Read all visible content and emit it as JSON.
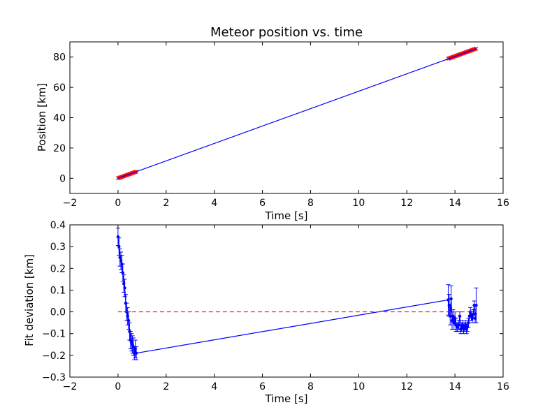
{
  "chart_data": [
    {
      "type": "line",
      "title": "Meteor position vs. time",
      "xlabel": "Time [s]",
      "ylabel": "Position [km]",
      "xlim": [
        -2,
        16
      ],
      "ylim": [
        -10,
        90
      ],
      "xticks": [
        -2,
        0,
        2,
        4,
        6,
        8,
        10,
        12,
        14,
        16
      ],
      "yticks": [
        0,
        20,
        40,
        60,
        80
      ],
      "grid": false,
      "series": [
        {
          "kind": "scatter",
          "color": "#ff0000",
          "marker": "x",
          "x": [
            0.0,
            0.04,
            0.08,
            0.12,
            0.16,
            0.2,
            0.24,
            0.28,
            0.32,
            0.36,
            0.4,
            0.44,
            0.48,
            0.52,
            0.56,
            0.6,
            0.64,
            0.68,
            0.72,
            0.76,
            13.72,
            13.76,
            13.8,
            13.84,
            13.88,
            13.92,
            13.96,
            14.0,
            14.04,
            14.08,
            14.12,
            14.16,
            14.2,
            14.24,
            14.28,
            14.32,
            14.36,
            14.4,
            14.44,
            14.48,
            14.52,
            14.56,
            14.6,
            14.64,
            14.68,
            14.72,
            14.76,
            14.8,
            14.84,
            14.88
          ],
          "y": [
            0.0,
            0.23,
            0.46,
            0.69,
            0.92,
            1.15,
            1.38,
            1.61,
            1.84,
            2.07,
            2.3,
            2.53,
            2.76,
            2.99,
            3.22,
            3.45,
            3.68,
            3.91,
            4.14,
            4.37,
            78.9,
            79.13,
            79.36,
            79.59,
            79.82,
            80.05,
            80.28,
            80.51,
            80.74,
            80.97,
            81.2,
            81.43,
            81.66,
            81.89,
            82.12,
            82.35,
            82.58,
            82.81,
            83.04,
            83.27,
            83.5,
            83.73,
            83.96,
            84.19,
            84.42,
            84.65,
            84.88,
            85.11,
            85.34,
            85.57
          ]
        },
        {
          "kind": "line",
          "color": "#0000ff",
          "x": [
            0.0,
            14.9
          ],
          "y": [
            0.0,
            85.6
          ]
        }
      ]
    },
    {
      "type": "line",
      "title": "",
      "xlabel": "Time [s]",
      "ylabel": "Fit deviation [km]",
      "xlim": [
        -2,
        16
      ],
      "ylim": [
        -0.3,
        0.4
      ],
      "xticks": [
        -2,
        0,
        2,
        4,
        6,
        8,
        10,
        12,
        14,
        16
      ],
      "yticks": [
        -0.3,
        -0.2,
        -0.1,
        0.0,
        0.1,
        0.2,
        0.3,
        0.4
      ],
      "ytick_labels": [
        "−0.3",
        "−0.2",
        "−0.1",
        "0.0",
        "0.1",
        "0.2",
        "0.3",
        "0.4"
      ],
      "grid": false,
      "series": [
        {
          "kind": "errorbar",
          "color": "#0000ff",
          "marker": "o",
          "x": [
            0.0,
            0.04,
            0.08,
            0.12,
            0.16,
            0.2,
            0.24,
            0.28,
            0.32,
            0.36,
            0.4,
            0.44,
            0.48,
            0.52,
            0.56,
            0.6,
            0.64,
            0.68,
            0.72,
            0.76,
            13.72,
            13.76,
            13.8,
            13.84,
            13.88,
            13.92,
            13.96,
            14.0,
            14.04,
            14.08,
            14.12,
            14.16,
            14.2,
            14.24,
            14.28,
            14.32,
            14.36,
            14.4,
            14.44,
            14.48,
            14.52,
            14.56,
            14.6,
            14.64,
            14.68,
            14.72,
            14.76,
            14.8,
            14.84,
            14.88
          ],
          "y": [
            0.345,
            0.3,
            0.25,
            0.235,
            0.22,
            0.18,
            0.13,
            0.11,
            0.04,
            0.0,
            -0.02,
            -0.04,
            -0.09,
            -0.13,
            -0.14,
            -0.15,
            -0.16,
            -0.19,
            -0.17,
            -0.19,
            0.055,
            0.03,
            -0.02,
            0.06,
            -0.04,
            -0.02,
            -0.05,
            -0.03,
            -0.06,
            -0.07,
            -0.07,
            -0.06,
            -0.02,
            -0.08,
            -0.07,
            -0.06,
            -0.08,
            -0.07,
            -0.06,
            -0.08,
            -0.07,
            -0.05,
            -0.02,
            0.0,
            -0.02,
            -0.03,
            -0.01,
            0.03,
            -0.03,
            0.03
          ],
          "yerr": [
            0.04,
            0.04,
            0.04,
            0.04,
            0.04,
            0.04,
            0.04,
            0.04,
            0.04,
            0.04,
            0.04,
            0.04,
            0.04,
            0.04,
            0.04,
            0.04,
            0.04,
            0.03,
            0.04,
            0.03,
            0.07,
            0.05,
            0.04,
            0.06,
            0.04,
            0.03,
            0.03,
            0.03,
            0.03,
            0.02,
            0.02,
            0.02,
            0.02,
            0.02,
            0.02,
            0.02,
            0.02,
            0.02,
            0.02,
            0.02,
            0.02,
            0.02,
            0.02,
            0.02,
            0.02,
            0.02,
            0.02,
            0.02,
            0.02,
            0.08
          ]
        },
        {
          "kind": "line",
          "color": "#0000ff",
          "x": [
            0.0,
            0.04,
            0.08,
            0.12,
            0.16,
            0.2,
            0.24,
            0.28,
            0.32,
            0.36,
            0.4,
            0.44,
            0.48,
            0.52,
            0.56,
            0.6,
            0.64,
            0.68,
            0.72,
            0.76,
            13.72,
            13.76,
            13.8,
            13.84,
            13.88,
            13.92,
            13.96,
            14.0,
            14.04,
            14.08,
            14.12,
            14.16,
            14.2,
            14.24,
            14.28,
            14.32,
            14.36,
            14.4,
            14.44,
            14.48,
            14.52,
            14.56,
            14.6,
            14.64,
            14.68,
            14.72,
            14.76,
            14.8,
            14.84,
            14.88
          ],
          "y": [
            0.345,
            0.3,
            0.25,
            0.235,
            0.22,
            0.18,
            0.13,
            0.11,
            0.04,
            0.0,
            -0.02,
            -0.04,
            -0.09,
            -0.13,
            -0.14,
            -0.15,
            -0.16,
            -0.19,
            -0.17,
            -0.19,
            0.055,
            0.03,
            -0.02,
            0.06,
            -0.04,
            -0.02,
            -0.05,
            -0.03,
            -0.06,
            -0.07,
            -0.07,
            -0.06,
            -0.02,
            -0.08,
            -0.07,
            -0.06,
            -0.08,
            -0.07,
            -0.06,
            -0.08,
            -0.07,
            -0.05,
            -0.02,
            0.0,
            -0.02,
            -0.03,
            -0.01,
            0.03,
            -0.03,
            0.03
          ]
        },
        {
          "kind": "line",
          "style": "dashed",
          "color": "#ff0000",
          "x": [
            0.0,
            14.9
          ],
          "y": [
            0.0,
            0.0
          ]
        }
      ]
    }
  ]
}
